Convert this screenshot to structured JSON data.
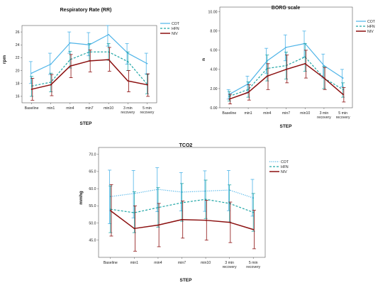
{
  "chart_data": [
    {
      "id": "rr",
      "type": "line",
      "title": "Respiratory Rate  (RR)",
      "xlabel": "STEP",
      "ylabel": "rpm",
      "categories": [
        [
          "Baseline"
        ],
        [
          "min1"
        ],
        [
          "min4"
        ],
        [
          "min7"
        ],
        [
          "min10"
        ],
        [
          "3 min",
          "recovery"
        ],
        [
          "5 min",
          "recovery"
        ]
      ],
      "ylim": [
        15,
        27
      ],
      "yticks": [
        16,
        18,
        20,
        22,
        24,
        26
      ],
      "ytick_labels": [
        "16",
        "18",
        "20",
        "22",
        "24",
        "26"
      ],
      "legend_position": "top-right",
      "series": [
        {
          "name": "COT",
          "color": "#4eb4e8",
          "dash": "none",
          "values": [
            19.6,
            21.0,
            24.3,
            24.0,
            25.6,
            22.7,
            21.1
          ],
          "ci": [
            [
              18.0,
              21.4
            ],
            [
              19.4,
              22.7
            ],
            [
              22.7,
              26.0
            ],
            [
              22.3,
              25.9
            ],
            [
              23.8,
              27.0
            ],
            [
              21.0,
              24.2
            ],
            [
              19.5,
              22.7
            ]
          ]
        },
        {
          "name": "HFN",
          "color": "#20a6a6",
          "dash": "3,2",
          "values": [
            17.6,
            18.2,
            21.7,
            22.9,
            22.9,
            21.4,
            17.9
          ],
          "ci": [
            [
              16.0,
              19.1
            ],
            [
              16.7,
              19.6
            ],
            [
              20.4,
              23.0
            ],
            [
              21.5,
              24.2
            ],
            [
              21.6,
              24.2
            ],
            [
              20.0,
              22.9
            ],
            [
              16.4,
              19.4
            ]
          ]
        },
        {
          "name": "NIV",
          "color": "#8b0f0f",
          "dash": "none",
          "values": [
            17.1,
            17.8,
            20.7,
            21.5,
            21.7,
            18.4,
            17.8
          ],
          "ci": [
            [
              15.4,
              18.8
            ],
            [
              16.1,
              19.4
            ],
            [
              18.9,
              22.5
            ],
            [
              19.8,
              23.2
            ],
            [
              19.9,
              23.6
            ],
            [
              16.7,
              20.0
            ],
            [
              16.0,
              19.5
            ]
          ]
        }
      ]
    },
    {
      "id": "borg",
      "type": "line",
      "title": "BORG scale",
      "xlabel": "STEP",
      "ylabel": "n",
      "categories": [
        [
          "Baseline"
        ],
        [
          "min1"
        ],
        [
          "min4"
        ],
        [
          "min7"
        ],
        [
          "min10"
        ],
        [
          "3 min",
          "recovery"
        ],
        [
          "5 min",
          "recovery"
        ]
      ],
      "ylim": [
        0,
        10.5
      ],
      "yticks": [
        0,
        2,
        4,
        6,
        8,
        10
      ],
      "ytick_labels": [
        "0.00",
        "2.00",
        "4.00",
        "6.00",
        "8.00",
        "10.00"
      ],
      "legend_position": "top-right",
      "series": [
        {
          "name": "COT",
          "color": "#4eb4e8",
          "dash": "none",
          "values": [
            1.4,
            2.5,
            4.9,
            6.3,
            6.7,
            4.4,
            3.1
          ],
          "ci": [
            [
              0.9,
              1.9
            ],
            [
              1.6,
              3.3
            ],
            [
              3.6,
              6.2
            ],
            [
              4.9,
              7.6
            ],
            [
              5.3,
              8.0
            ],
            [
              3.1,
              5.6
            ],
            [
              2.2,
              4.0
            ]
          ]
        },
        {
          "name": "HFN",
          "color": "#20a6a6",
          "dash": "3,2",
          "values": [
            1.2,
            1.9,
            4.1,
            4.4,
            5.3,
            3.1,
            1.9
          ],
          "ci": [
            [
              0.7,
              1.7
            ],
            [
              1.1,
              2.7
            ],
            [
              2.8,
              5.5
            ],
            [
              3.0,
              5.8
            ],
            [
              3.8,
              6.7
            ],
            [
              2.0,
              4.3
            ],
            [
              1.1,
              2.6
            ]
          ]
        },
        {
          "name": "NIV",
          "color": "#8b0f0f",
          "dash": "none",
          "values": [
            0.9,
            1.6,
            3.3,
            4.0,
            4.6,
            3.1,
            1.4
          ],
          "ci": [
            [
              0.4,
              1.4
            ],
            [
              0.8,
              2.4
            ],
            [
              1.9,
              4.6
            ],
            [
              2.6,
              5.5
            ],
            [
              3.1,
              6.0
            ],
            [
              1.9,
              4.2
            ],
            [
              0.6,
              2.1
            ]
          ]
        }
      ]
    },
    {
      "id": "tco2",
      "type": "line",
      "title": "TCO2",
      "xlabel": "STEP",
      "ylabel": "mmhg",
      "categories": [
        [
          "Baseline"
        ],
        [
          "min1"
        ],
        [
          "min4"
        ],
        [
          "min7"
        ],
        [
          "min10"
        ],
        [
          "3 min",
          "recovery"
        ],
        [
          "5 min",
          "recovery"
        ]
      ],
      "ylim": [
        40,
        72
      ],
      "yticks": [
        45,
        50,
        55,
        60,
        65,
        70
      ],
      "ytick_labels": [
        "45.0",
        "50.0",
        "55.0",
        "60.0",
        "65.0",
        "70.0"
      ],
      "legend_position": "top-right",
      "series": [
        {
          "name": "COT",
          "color": "#4eb4e8",
          "dash": "1.2,1.5",
          "values": [
            57.7,
            58.6,
            59.8,
            59.0,
            59.3,
            59.6,
            57.3
          ],
          "ci": [
            [
              49.8,
              65.4
            ],
            [
              51.5,
              65.3
            ],
            [
              53.3,
              66.1
            ],
            [
              53.5,
              64.7
            ],
            [
              53.4,
              65.2
            ],
            [
              53.6,
              65.3
            ],
            [
              52.0,
              62.7
            ]
          ]
        },
        {
          "name": "HFN",
          "color": "#20a6a6",
          "dash": "3,2",
          "values": [
            54.0,
            53.0,
            54.5,
            55.9,
            56.9,
            55.7,
            53.1
          ],
          "ci": [
            [
              47.2,
              60.8
            ],
            [
              47.2,
              59.1
            ],
            [
              48.8,
              60.3
            ],
            [
              50.5,
              61.5
            ],
            [
              51.3,
              62.5
            ],
            [
              50.3,
              61.1
            ],
            [
              47.6,
              58.6
            ]
          ]
        },
        {
          "name": "NIV",
          "color": "#8b0f0f",
          "dash": "none",
          "values": [
            53.6,
            48.4,
            49.4,
            51.0,
            50.8,
            50.2,
            48.1
          ],
          "ci": [
            [
              46.2,
              61.2
            ],
            [
              41.8,
              55.0
            ],
            [
              43.1,
              55.7
            ],
            [
              45.6,
              56.4
            ],
            [
              45.0,
              56.6
            ],
            [
              44.3,
              56.1
            ],
            [
              42.5,
              53.7
            ]
          ]
        }
      ]
    }
  ]
}
